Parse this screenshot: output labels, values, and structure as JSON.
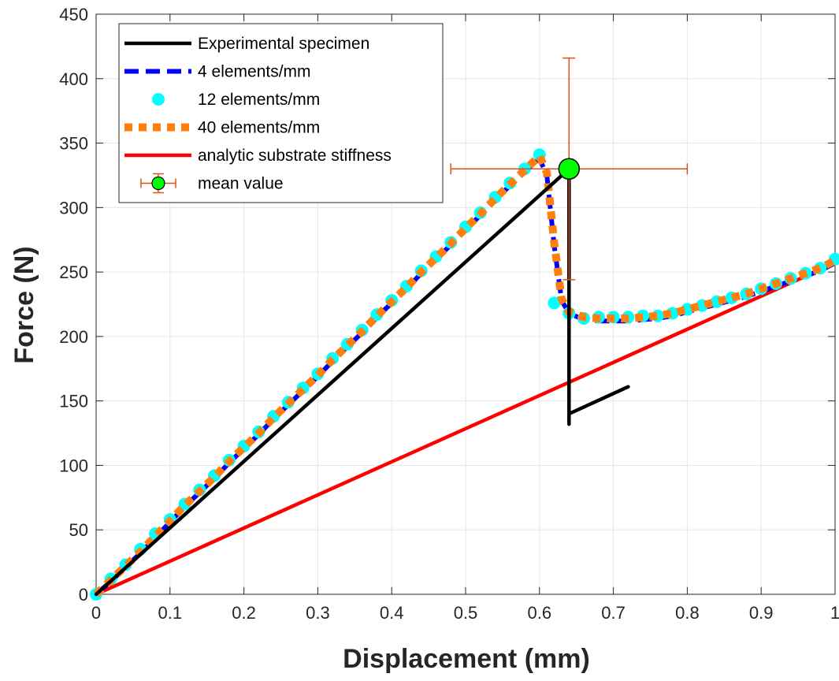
{
  "chart_data": {
    "type": "line",
    "xlabel": "Displacement (mm)",
    "ylabel": "Force (N)",
    "xlim": [
      0,
      1
    ],
    "ylim": [
      0,
      450
    ],
    "x_ticks": [
      0,
      0.1,
      0.2,
      0.3,
      0.4,
      0.5,
      0.6,
      0.7,
      0.8,
      0.9,
      1
    ],
    "x_tick_labels": [
      "0",
      "0.1",
      "0.2",
      "0.3",
      "0.4",
      "0.5",
      "0.6",
      "0.7",
      "0.8",
      "0.9",
      "1"
    ],
    "y_ticks": [
      0,
      50,
      100,
      150,
      200,
      250,
      300,
      350,
      400,
      450
    ],
    "y_tick_labels": [
      "0",
      "50",
      "100",
      "150",
      "200",
      "250",
      "300",
      "350",
      "400",
      "450"
    ],
    "grid": true,
    "legend_position": "top-left",
    "series": [
      {
        "name": "Experimental specimen",
        "color": "#000000",
        "style": "solid",
        "x": [
          0.0,
          0.64,
          0.64,
          0.64,
          0.72
        ],
        "y": [
          0,
          330,
          132,
          140,
          161
        ]
      },
      {
        "name": "4 elements/mm",
        "color": "#0000ff",
        "style": "dashed",
        "x": [
          0.0,
          0.02,
          0.04,
          0.06,
          0.08,
          0.1,
          0.12,
          0.14,
          0.16,
          0.18,
          0.2,
          0.22,
          0.24,
          0.26,
          0.28,
          0.3,
          0.32,
          0.34,
          0.36,
          0.38,
          0.4,
          0.42,
          0.44,
          0.46,
          0.48,
          0.5,
          0.52,
          0.54,
          0.56,
          0.58,
          0.6,
          0.61,
          0.62,
          0.63,
          0.64,
          0.66,
          0.68,
          0.7,
          0.72,
          0.74,
          0.76,
          0.78,
          0.8,
          0.82,
          0.84,
          0.86,
          0.88,
          0.9,
          0.92,
          0.94,
          0.96,
          0.98,
          1.0
        ],
        "y": [
          0,
          10,
          21,
          32,
          44,
          56,
          68,
          79,
          90,
          102,
          113,
          124,
          136,
          147,
          158,
          169,
          181,
          192,
          203,
          215,
          226,
          237,
          249,
          260,
          271,
          283,
          294,
          306,
          317,
          328,
          338,
          325,
          270,
          228,
          218,
          213,
          212,
          212,
          212,
          213,
          214,
          216,
          219,
          222,
          225,
          228,
          231,
          235,
          239,
          243,
          247,
          251,
          257
        ]
      },
      {
        "name": "12 elements/mm",
        "color": "#00ffff",
        "style": "dots",
        "x": [
          0.0,
          0.02,
          0.04,
          0.06,
          0.08,
          0.1,
          0.12,
          0.14,
          0.16,
          0.18,
          0.2,
          0.22,
          0.24,
          0.26,
          0.28,
          0.3,
          0.32,
          0.34,
          0.36,
          0.38,
          0.4,
          0.42,
          0.44,
          0.46,
          0.48,
          0.5,
          0.52,
          0.54,
          0.56,
          0.58,
          0.6,
          0.62,
          0.64,
          0.66,
          0.68,
          0.7,
          0.72,
          0.74,
          0.76,
          0.78,
          0.8,
          0.82,
          0.84,
          0.86,
          0.88,
          0.9,
          0.92,
          0.94,
          0.96,
          0.98,
          1.0
        ],
        "y": [
          0,
          12,
          23,
          35,
          47,
          58,
          70,
          81,
          92,
          104,
          115,
          126,
          138,
          149,
          160,
          171,
          183,
          194,
          205,
          217,
          228,
          239,
          251,
          262,
          273,
          285,
          296,
          308,
          319,
          330,
          341,
          226,
          218,
          214,
          215,
          215,
          215,
          216,
          216,
          218,
          221,
          224,
          227,
          230,
          233,
          237,
          241,
          245,
          249,
          253,
          260
        ]
      },
      {
        "name": "40 elements/mm",
        "color": "#ff7f0e",
        "style": "dotted",
        "x": [
          0.0,
          0.02,
          0.04,
          0.06,
          0.08,
          0.1,
          0.12,
          0.14,
          0.16,
          0.18,
          0.2,
          0.22,
          0.24,
          0.26,
          0.28,
          0.3,
          0.32,
          0.34,
          0.36,
          0.38,
          0.4,
          0.42,
          0.44,
          0.46,
          0.48,
          0.5,
          0.52,
          0.54,
          0.56,
          0.58,
          0.6,
          0.61,
          0.62,
          0.63,
          0.64,
          0.66,
          0.68,
          0.7,
          0.72,
          0.74,
          0.76,
          0.78,
          0.8,
          0.82,
          0.84,
          0.86,
          0.88,
          0.9,
          0.92,
          0.94,
          0.96,
          0.98,
          1.0
        ],
        "y": [
          0,
          11,
          22,
          33,
          45,
          57,
          69,
          80,
          91,
          103,
          114,
          125,
          137,
          148,
          159,
          170,
          182,
          193,
          204,
          216,
          227,
          238,
          250,
          261,
          272,
          284,
          295,
          307,
          318,
          329,
          340,
          327,
          272,
          229,
          219,
          215,
          214,
          214,
          214,
          215,
          216,
          218,
          221,
          224,
          227,
          230,
          233,
          237,
          241,
          245,
          249,
          253,
          259
        ]
      },
      {
        "name": "analytic substrate stiffness",
        "color": "#ff0000",
        "style": "solid",
        "x": [
          0,
          1
        ],
        "y": [
          0,
          257
        ]
      }
    ],
    "mean_value": {
      "name": "mean value",
      "x": 0.64,
      "y": 330,
      "x_err": [
        0.48,
        0.8
      ],
      "y_err": [
        244,
        416
      ],
      "marker_color": "#00ff00",
      "errorbar_color": "#d95319"
    }
  }
}
